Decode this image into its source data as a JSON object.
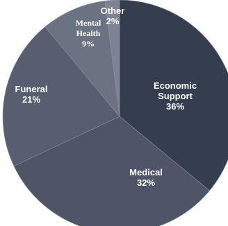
{
  "chart_data": {
    "type": "pie",
    "slices": [
      {
        "label_lines": [
          "Economic",
          "Support"
        ],
        "value": 36,
        "value_label": "36%",
        "color": "#353e4f"
      },
      {
        "label_lines": [
          "Medical"
        ],
        "value": 32,
        "value_label": "32%",
        "color": "#4d5566"
      },
      {
        "label_lines": [
          "Funeral"
        ],
        "value": 21,
        "value_label": "21%",
        "color": "#565e6f"
      },
      {
        "label_lines": [
          "Mental",
          "Health"
        ],
        "value": 9,
        "value_label": "9%",
        "color": "#6b7281"
      },
      {
        "label_lines": [
          "Other"
        ],
        "value": 2,
        "value_label": "2%",
        "color": "#7d8392"
      }
    ]
  }
}
